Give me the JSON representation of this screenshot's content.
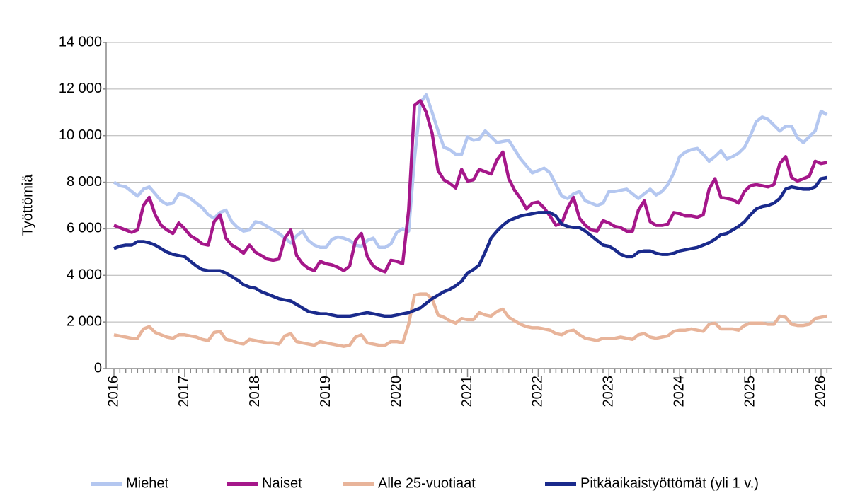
{
  "chart_data": {
    "type": "line",
    "y_label": "Työttömiä",
    "categories": [
      "2016",
      null,
      null,
      null,
      null,
      null,
      null,
      null,
      null,
      null,
      null,
      null,
      "2017",
      null,
      null,
      null,
      null,
      null,
      null,
      null,
      null,
      null,
      null,
      null,
      "2018",
      null,
      null,
      null,
      null,
      null,
      null,
      null,
      null,
      null,
      null,
      null,
      "2019",
      null,
      null,
      null,
      null,
      null,
      null,
      null,
      null,
      null,
      null,
      null,
      "2020",
      null,
      null,
      null,
      null,
      null,
      null,
      null,
      null,
      null,
      null,
      null,
      "2021",
      null,
      null,
      null,
      null,
      null,
      null,
      null,
      null,
      null,
      null,
      null,
      "2022",
      null,
      null,
      null,
      null,
      null,
      null,
      null,
      null,
      null,
      null,
      null,
      "2023",
      null,
      null,
      null,
      null,
      null,
      null,
      null,
      null,
      null,
      null,
      null,
      "2024",
      null,
      null,
      null,
      null,
      null,
      null,
      null,
      null,
      null,
      null,
      null,
      "2025",
      null,
      null,
      null,
      null,
      null,
      null,
      null,
      null,
      null,
      null,
      null,
      "2026",
      null
    ],
    "series": [
      {
        "name": "Miehet",
        "color": "#b4c7f0",
        "values": [
          8000,
          7850,
          7800,
          7600,
          7400,
          7700,
          7800,
          7500,
          7200,
          7050,
          7100,
          7500,
          7450,
          7300,
          7100,
          6900,
          6600,
          6450,
          6700,
          6800,
          6300,
          6050,
          5900,
          5950,
          6300,
          6250,
          6100,
          5950,
          5800,
          5600,
          5400,
          5700,
          5900,
          5500,
          5300,
          5200,
          5200,
          5550,
          5650,
          5600,
          5500,
          5300,
          5250,
          5500,
          5600,
          5200,
          5200,
          5350,
          5850,
          6000,
          5900,
          9000,
          11400,
          11750,
          11000,
          10200,
          9500,
          9400,
          9200,
          9200,
          9950,
          9800,
          9850,
          10200,
          9950,
          9700,
          9750,
          9800,
          9400,
          9000,
          8700,
          8400,
          8500,
          8600,
          8400,
          7900,
          7400,
          7300,
          7500,
          7600,
          7200,
          7100,
          7000,
          7100,
          7600,
          7600,
          7650,
          7700,
          7500,
          7300,
          7500,
          7700,
          7450,
          7600,
          7900,
          8400,
          9100,
          9300,
          9400,
          9450,
          9200,
          8900,
          9100,
          9350,
          9000,
          9100,
          9250,
          9500,
          10000,
          10600,
          10800,
          10700,
          10450,
          10200,
          10400,
          10400,
          9900,
          9700,
          9950,
          10200,
          11050,
          10900
        ]
      },
      {
        "name": "Naiset",
        "color": "#a5178a",
        "values": [
          6150,
          6050,
          5950,
          5850,
          5950,
          7000,
          7350,
          6600,
          6150,
          5950,
          5800,
          6250,
          6000,
          5700,
          5550,
          5350,
          5300,
          6300,
          6600,
          5600,
          5300,
          5150,
          4950,
          5300,
          5000,
          4850,
          4700,
          4650,
          4700,
          5600,
          5950,
          4850,
          4500,
          4300,
          4200,
          4600,
          4500,
          4450,
          4350,
          4200,
          4400,
          5500,
          5800,
          4800,
          4400,
          4250,
          4150,
          4650,
          4600,
          4500,
          6800,
          11300,
          11500,
          11000,
          10100,
          8500,
          8100,
          7950,
          7750,
          8550,
          8050,
          8100,
          8550,
          8450,
          8350,
          8950,
          9300,
          8150,
          7650,
          7300,
          6850,
          7100,
          7150,
          6900,
          6550,
          6150,
          6250,
          6900,
          7350,
          6450,
          6150,
          5950,
          5900,
          6350,
          6250,
          6100,
          6050,
          5900,
          5900,
          6800,
          7200,
          6300,
          6150,
          6150,
          6200,
          6700,
          6650,
          6550,
          6550,
          6500,
          6600,
          7700,
          8150,
          7350,
          7300,
          7250,
          7100,
          7600,
          7850,
          7900,
          7850,
          7800,
          7900,
          8800,
          9100,
          8200,
          8050,
          8150,
          8250,
          8900,
          8800,
          8850
        ]
      },
      {
        "name": "Alle 25-vuotiaat",
        "color": "#e8b49a",
        "values": [
          1450,
          1400,
          1350,
          1300,
          1300,
          1700,
          1800,
          1550,
          1450,
          1350,
          1300,
          1450,
          1450,
          1400,
          1350,
          1250,
          1200,
          1550,
          1600,
          1250,
          1200,
          1100,
          1050,
          1250,
          1200,
          1150,
          1100,
          1100,
          1050,
          1400,
          1500,
          1150,
          1100,
          1050,
          1000,
          1150,
          1100,
          1050,
          1000,
          950,
          1000,
          1350,
          1450,
          1100,
          1050,
          1000,
          1000,
          1150,
          1150,
          1100,
          1900,
          3150,
          3200,
          3200,
          3000,
          2300,
          2200,
          2050,
          1950,
          2150,
          2100,
          2100,
          2400,
          2300,
          2250,
          2450,
          2550,
          2200,
          2050,
          1900,
          1800,
          1750,
          1750,
          1700,
          1650,
          1500,
          1450,
          1600,
          1650,
          1450,
          1300,
          1250,
          1200,
          1300,
          1300,
          1300,
          1350,
          1300,
          1250,
          1450,
          1500,
          1350,
          1300,
          1350,
          1400,
          1600,
          1650,
          1650,
          1700,
          1650,
          1600,
          1900,
          1950,
          1700,
          1700,
          1700,
          1650,
          1850,
          1950,
          1950,
          1950,
          1900,
          1900,
          2250,
          2200,
          1900,
          1850,
          1850,
          1900,
          2150,
          2200,
          2250
        ]
      },
      {
        "name": "Pitkäaikaistyöttömät (yli 1 v.)",
        "color": "#1a2a8c",
        "values": [
          5150,
          5250,
          5300,
          5300,
          5450,
          5450,
          5400,
          5300,
          5150,
          5000,
          4900,
          4850,
          4800,
          4600,
          4400,
          4250,
          4200,
          4200,
          4200,
          4100,
          3950,
          3800,
          3600,
          3500,
          3450,
          3300,
          3200,
          3100,
          3000,
          2950,
          2900,
          2750,
          2600,
          2450,
          2400,
          2350,
          2350,
          2300,
          2250,
          2250,
          2250,
          2300,
          2350,
          2400,
          2350,
          2300,
          2250,
          2250,
          2300,
          2350,
          2400,
          2500,
          2600,
          2800,
          3000,
          3150,
          3300,
          3400,
          3550,
          3750,
          4100,
          4250,
          4450,
          5000,
          5600,
          5900,
          6150,
          6350,
          6450,
          6550,
          6600,
          6650,
          6700,
          6700,
          6700,
          6550,
          6200,
          6100,
          6050,
          6050,
          5900,
          5700,
          5500,
          5300,
          5250,
          5100,
          4900,
          4800,
          4800,
          5000,
          5050,
          5050,
          4950,
          4900,
          4900,
          4950,
          5050,
          5100,
          5150,
          5200,
          5300,
          5400,
          5550,
          5750,
          5800,
          5950,
          6100,
          6300,
          6600,
          6850,
          6950,
          7000,
          7100,
          7300,
          7700,
          7800,
          7750,
          7700,
          7700,
          7800,
          8150,
          8200
        ]
      }
    ],
    "ylim": [
      0,
      14000
    ],
    "yticks": [
      0,
      {
        "value": 2000,
        "label": "2 000"
      },
      {
        "value": 4000,
        "label": "4 000"
      },
      {
        "value": 6000,
        "label": "6 000"
      },
      {
        "value": 8000,
        "label": "8 000"
      },
      {
        "value": 10000,
        "label": "10 000"
      },
      {
        "value": 12000,
        "label": "12 000"
      },
      {
        "value": 14000,
        "label": "14 000"
      }
    ],
    "grid": true,
    "legend": "bottom"
  }
}
